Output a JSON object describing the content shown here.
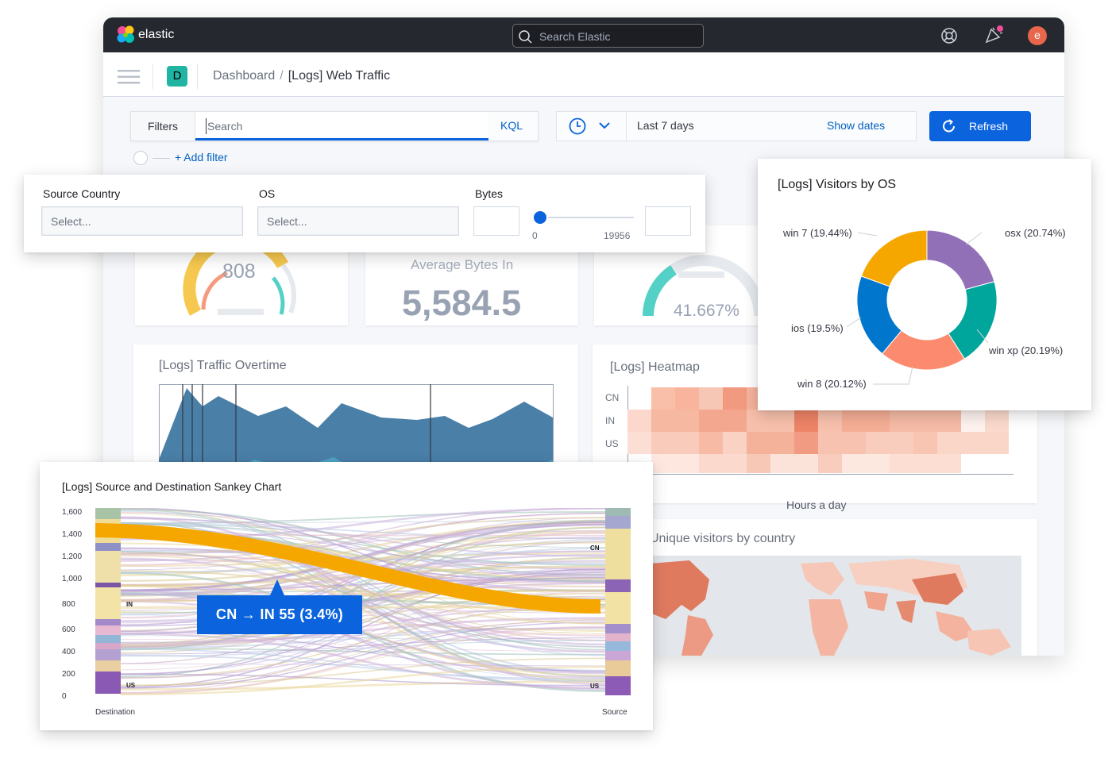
{
  "topbar": {
    "brand": "elastic",
    "search_placeholder": "Search Elastic",
    "avatar_initial": "e"
  },
  "header": {
    "space_letter": "D",
    "breadcrumb": [
      "Dashboard",
      "/",
      "[Logs] Web Traffic"
    ]
  },
  "query_bar": {
    "filters_label": "Filters",
    "search_placeholder": "Search",
    "kql_label": "KQL",
    "date_range": "Last 7 days",
    "show_dates_label": "Show dates",
    "refresh_label": "Refresh",
    "add_filter_label": "+ Add filter"
  },
  "controls": {
    "source_country_label": "Source Country",
    "source_country_placeholder": "Select...",
    "os_label": "OS",
    "os_placeholder": "Select...",
    "bytes_label": "Bytes",
    "bytes_min": "0",
    "bytes_max": "19956",
    "slider_value": 0
  },
  "metrics": {
    "gauge1_value": "808",
    "average_bytes_label": "Average Bytes In",
    "average_bytes_value": "5,584.5",
    "gauge3_value": "41.667%"
  },
  "panels": {
    "traffic_title": "[Logs] Traffic Overtime",
    "heatmap_title": "[Logs] Heatmap",
    "heatmap_rows": [
      "CN",
      "IN",
      "US"
    ],
    "heatmap_xlabel": "Hours a day",
    "map_title": "Unique visitors by country"
  },
  "os_chart": {
    "title": "[Logs] Visitors by OS",
    "chart_data": {
      "type": "pie",
      "title": "[Logs] Visitors by OS",
      "slices": [
        {
          "label": "osx (20.74%)",
          "value": 20.74,
          "color": "#9170b8"
        },
        {
          "label": "win xp (20.19%)",
          "value": 20.19,
          "color": "#00a69b"
        },
        {
          "label": "win 8 (20.12%)",
          "value": 20.12,
          "color": "#fc8a6e"
        },
        {
          "label": "ios (19.5%)",
          "value": 19.5,
          "color": "#0077cc"
        },
        {
          "label": "win 7 (19.44%)",
          "value": 19.44,
          "color": "#f5a700"
        }
      ]
    }
  },
  "sankey": {
    "title": "[Logs] Source and Destination Sankey Chart",
    "y_ticks": [
      "1,600",
      "1,400",
      "1,200",
      "1,000",
      "800",
      "600",
      "400",
      "200",
      "0"
    ],
    "left_labels": [
      "IN",
      "US"
    ],
    "right_labels": [
      "CN",
      "US"
    ],
    "x_left_label": "Destination",
    "x_right_label": "Source",
    "tooltip": "CN → IN 55 (3.4%)"
  }
}
